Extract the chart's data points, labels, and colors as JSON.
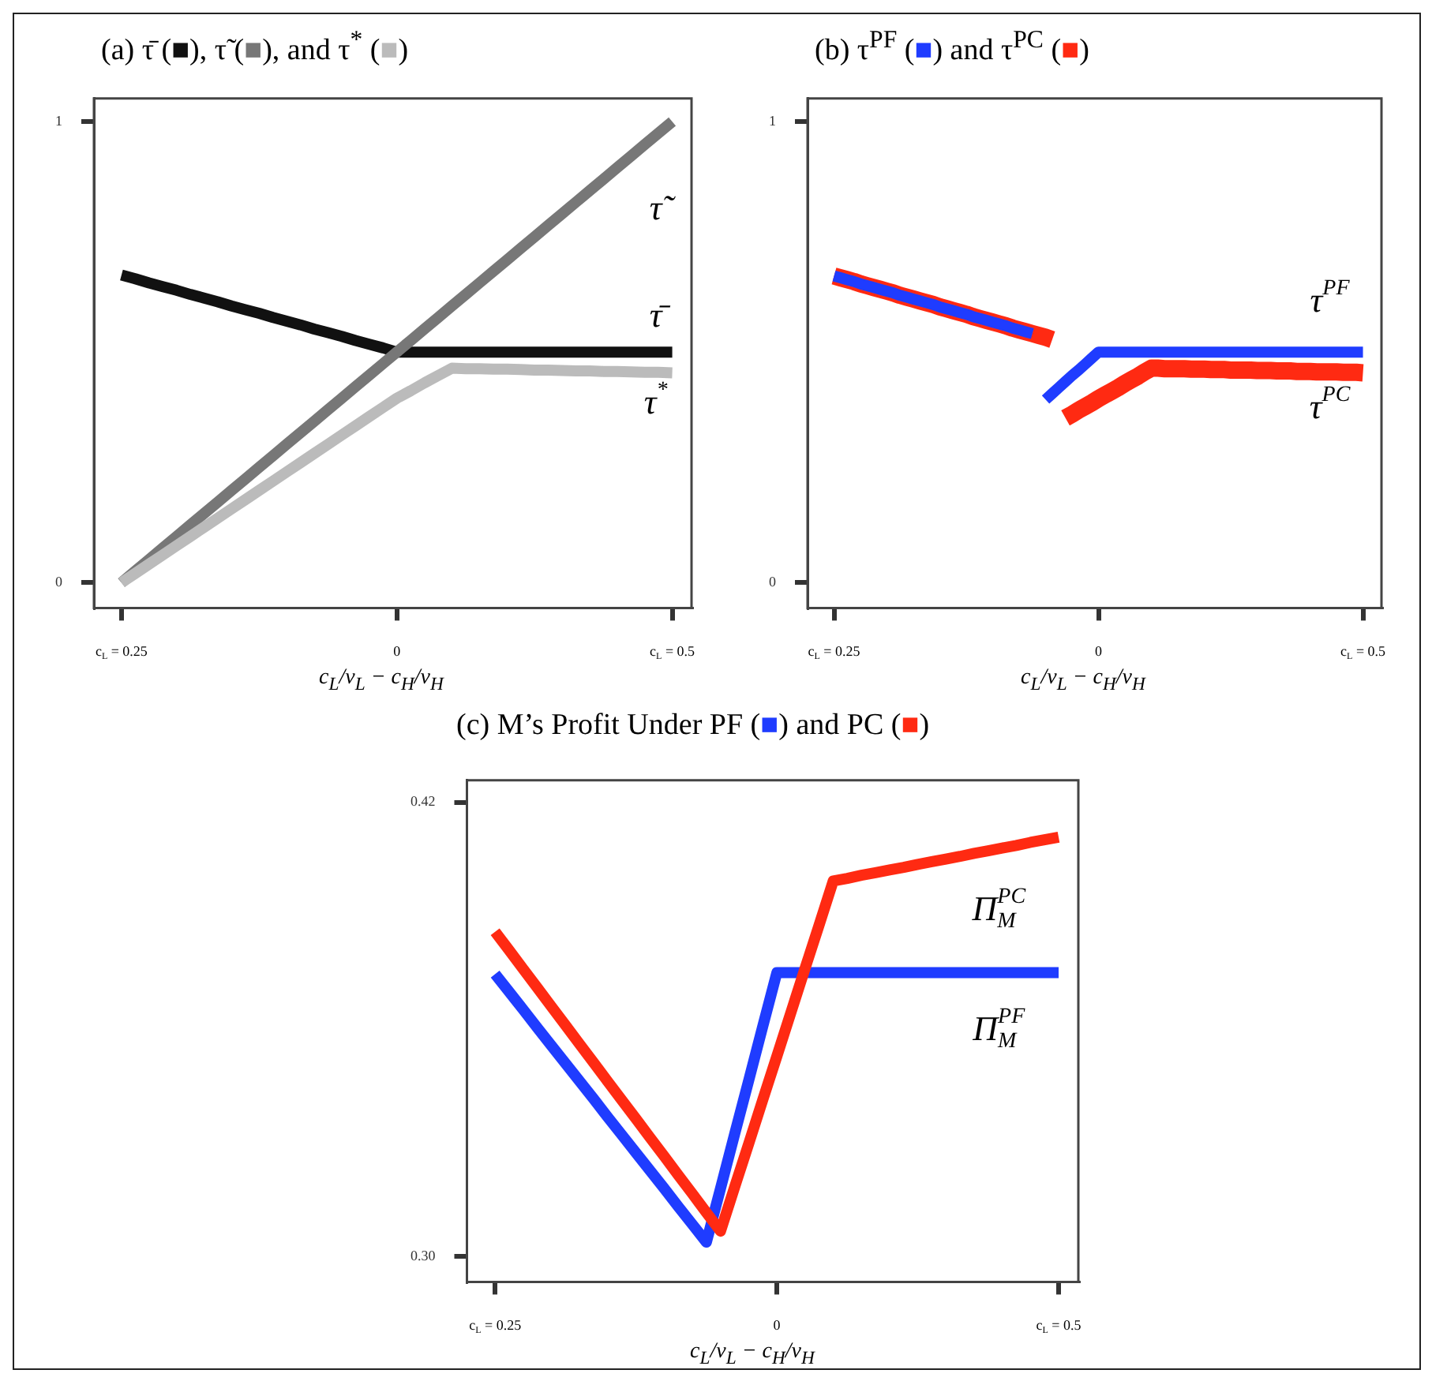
{
  "chart_data": [
    {
      "type": "line",
      "title": "(a) τ̄ (■), τ̃ (■), and τ$^{*}$ (■)",
      "xlabel": "c$_{L}$/v$_{L}$ − c$_{H}$/v$_{H}$",
      "categories": [
        "c$_{L}$ = 0.25",
        null,
        null,
        null,
        null,
        null,
        null,
        null,
        null,
        null,
        null,
        null,
        null,
        null,
        null,
        null,
        null,
        null,
        null,
        null,
        "0",
        null,
        null,
        null,
        null,
        null,
        null,
        null,
        null,
        null,
        null,
        null,
        null,
        null,
        null,
        null,
        null,
        null,
        null,
        null,
        "c$_{L}$ = 0.5"
      ],
      "ylim": [
        -0.055,
        1.05
      ],
      "yticks": [
        0,
        1
      ],
      "series": [
        {
          "color": "#111111",
          "values": [
            0.667,
            0.659,
            0.65,
            0.642,
            0.634,
            0.625,
            0.617,
            0.609,
            0.6,
            0.592,
            0.584,
            0.575,
            0.567,
            0.559,
            0.55,
            0.542,
            0.534,
            0.525,
            0.517,
            0.509,
            0.5,
            0.5,
            0.5,
            0.5,
            0.5,
            0.5,
            0.5,
            0.5,
            0.5,
            0.5,
            0.5,
            0.5,
            0.5,
            0.5,
            0.5,
            0.5,
            0.5,
            0.5,
            0.5,
            0.5,
            0.5
          ]
        },
        {
          "color": "#777777",
          "values": [
            0,
            0.025,
            0.05,
            0.075,
            0.1,
            0.125,
            0.15,
            0.175,
            0.2,
            0.225,
            0.25,
            0.275,
            0.3,
            0.325,
            0.35,
            0.375,
            0.4,
            0.425,
            0.45,
            0.475,
            0.5,
            0.525,
            0.55,
            0.575,
            0.6,
            0.625,
            0.65,
            0.675,
            0.7,
            0.725,
            0.75,
            0.775,
            0.8,
            0.825,
            0.85,
            0.875,
            0.9,
            0.925,
            0.95,
            0.975,
            1
          ]
        },
        {
          "color": "#bbbbbb",
          "values": [
            0,
            0.02,
            0.04,
            0.06,
            0.08,
            0.1,
            0.12,
            0.14,
            0.16,
            0.18,
            0.2,
            0.22,
            0.24,
            0.26,
            0.28,
            0.3,
            0.32,
            0.34,
            0.36,
            0.38,
            0.4,
            0.416,
            0.433,
            0.449,
            0.465,
            0.464,
            0.464,
            0.463,
            0.463,
            0.462,
            0.461,
            0.461,
            0.46,
            0.459,
            0.459,
            0.458,
            0.458,
            0.457,
            0.456,
            0.456,
            0.455
          ]
        }
      ],
      "annotations": [
        "τ̃",
        "τ̄",
        "τ$^{*}$"
      ]
    },
    {
      "type": "line",
      "title": "(b) τ$^{PF}$ (■) and τ$^{PC}$ (■)",
      "xlabel": "c$_{L}$/v$_{L}$ − c$_{H}$/v$_{H}$",
      "categories": [
        "c$_{L}$ = 0.25",
        null,
        null,
        null,
        null,
        null,
        null,
        null,
        null,
        null,
        null,
        null,
        null,
        null,
        null,
        null,
        null,
        null,
        null,
        null,
        null,
        null,
        null,
        null,
        null,
        null,
        null,
        null,
        null,
        null,
        null,
        null,
        null,
        null,
        null,
        null,
        null,
        null,
        null,
        null,
        "0",
        null,
        null,
        null,
        null,
        null,
        null,
        null,
        null,
        null,
        null,
        null,
        null,
        null,
        null,
        null,
        null,
        null,
        null,
        null,
        null,
        null,
        null,
        null,
        null,
        null,
        null,
        null,
        null,
        null,
        null,
        null,
        null,
        null,
        null,
        null,
        null,
        null,
        null,
        null,
        "c$_{L}$ = 0.5"
      ],
      "ylim": [
        -0.055,
        1.05
      ],
      "yticks": [
        0,
        1
      ],
      "series": [
        {
          "color": "#1f3cff",
          "values": [
            0.665,
            0.661,
            0.657,
            0.653,
            0.648,
            0.644,
            0.64,
            0.636,
            0.632,
            0.628,
            0.623,
            0.619,
            0.615,
            0.611,
            0.607,
            0.603,
            0.598,
            0.594,
            0.59,
            0.586,
            0.582,
            0.577,
            0.573,
            0.569,
            0.565,
            0.561,
            0.557,
            0.552,
            0.548,
            0.544,
            0.54,
            null,
            0.397,
            0.41,
            0.423,
            0.436,
            0.449,
            0.461,
            0.474,
            0.487,
            0.5,
            0.5,
            0.5,
            0.5,
            0.5,
            0.5,
            0.5,
            0.5,
            0.5,
            0.5,
            0.5,
            0.5,
            0.5,
            0.5,
            0.5,
            0.5,
            0.5,
            0.5,
            0.5,
            0.5,
            0.5,
            0.5,
            0.5,
            0.5,
            0.5,
            0.5,
            0.5,
            0.5,
            0.5,
            0.5,
            0.5,
            0.5,
            0.5,
            0.5,
            0.5,
            0.5,
            0.5,
            0.5,
            0.5,
            0.5,
            0.5
          ]
        },
        {
          "color": "#ff2a12",
          "values": [
            0.665,
            0.661,
            0.657,
            0.653,
            0.648,
            0.644,
            0.64,
            0.636,
            0.632,
            0.628,
            0.623,
            0.619,
            0.615,
            0.611,
            0.607,
            0.603,
            0.598,
            0.594,
            0.59,
            0.586,
            0.582,
            0.577,
            0.573,
            0.569,
            0.565,
            0.561,
            0.557,
            0.552,
            0.548,
            0.544,
            0.54,
            0.536,
            0.532,
            0.527,
            null,
            0.357,
            0.365,
            0.374,
            0.382,
            0.39,
            0.399,
            0.407,
            0.415,
            0.423,
            0.432,
            0.44,
            0.448,
            0.457,
            0.465,
            0.465,
            0.464,
            0.464,
            0.464,
            0.464,
            0.463,
            0.463,
            0.463,
            0.462,
            0.462,
            0.462,
            0.461,
            0.461,
            0.461,
            0.461,
            0.46,
            0.46,
            0.46,
            0.459,
            0.459,
            0.459,
            0.458,
            0.458,
            0.458,
            0.457,
            0.457,
            0.457,
            0.457,
            0.456,
            0.456,
            0.456,
            0.455
          ]
        }
      ],
      "annotations": [
        "τ$^{PF}$",
        "τ$^{PC}$"
      ]
    },
    {
      "type": "line",
      "title": "(c) M’s Profit Under PF (■) and PC (■)",
      "xlabel": "c$_{L}$/v$_{L}$ − c$_{H}$/v$_{H}$",
      "categories": [
        "c$_{L}$ = 0.25",
        null,
        null,
        null,
        null,
        null,
        null,
        null,
        null,
        null,
        null,
        null,
        null,
        null,
        null,
        null,
        null,
        null,
        null,
        null,
        "0",
        null,
        null,
        null,
        null,
        null,
        null,
        null,
        null,
        null,
        null,
        null,
        null,
        null,
        null,
        null,
        null,
        null,
        null,
        null,
        "c$_{L}$ = 0.5"
      ],
      "ylim": [
        0.2933,
        0.4258
      ],
      "yticks": [
        {
          "value": 0.3,
          "label": "0.30"
        },
        0.42
      ],
      "series": [
        {
          "color": "#1f3cff",
          "values": [
            0.3746,
            0.3699,
            0.3652,
            0.3604,
            0.3557,
            0.351,
            0.3463,
            0.3416,
            0.3368,
            0.3321,
            0.3274,
            0.3227,
            0.318,
            0.3132,
            0.3085,
            0.3038,
            0.318,
            0.3323,
            0.3465,
            0.3608,
            0.375,
            0.375,
            0.375,
            0.375,
            0.375,
            0.375,
            0.375,
            0.375,
            0.375,
            0.375,
            0.375,
            0.375,
            0.375,
            0.375,
            0.375,
            0.375,
            0.375,
            0.375,
            0.375,
            0.375,
            0.375
          ]
        },
        {
          "color": "#ff2a12",
          "values": [
            0.3858,
            0.3809,
            0.3759,
            0.371,
            0.366,
            0.3611,
            0.3561,
            0.3512,
            0.3462,
            0.3413,
            0.3364,
            0.3314,
            0.3265,
            0.3215,
            0.3166,
            0.3116,
            0.3067,
            0.3183,
            0.3298,
            0.3414,
            0.3529,
            0.3645,
            0.3761,
            0.3876,
            0.3992,
            0.3999,
            0.4007,
            0.4014,
            0.4021,
            0.4028,
            0.4036,
            0.4043,
            0.405,
            0.4057,
            0.4065,
            0.4072,
            0.4079,
            0.4086,
            0.4094,
            0.4101,
            0.4108
          ]
        }
      ],
      "annotations": [
        "Π$_{M}$$^{PC}$",
        "Π$_{M}$$^{PF}$"
      ]
    }
  ]
}
